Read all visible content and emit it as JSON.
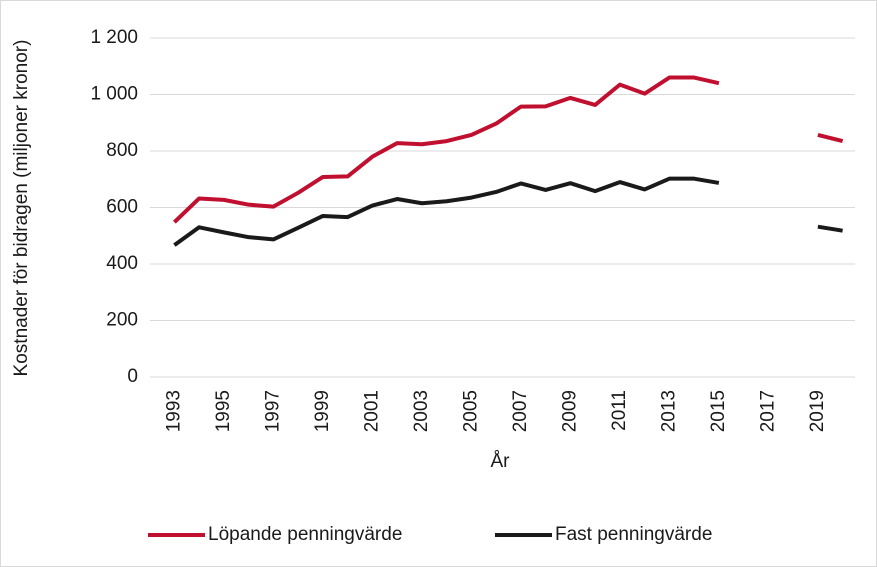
{
  "chart_data": {
    "type": "line",
    "y_label": "Kostnader för bidragen (miljoner kronor)",
    "x_label": "År",
    "categories": [
      1993,
      null,
      1995,
      null,
      1997,
      null,
      1999,
      null,
      2001,
      null,
      2003,
      null,
      2005,
      null,
      2007,
      null,
      2009,
      null,
      2011,
      null,
      2013,
      null,
      2015,
      null,
      2017,
      null,
      2019,
      null
    ],
    "series": [
      {
        "name": "Löpande penningvärde",
        "color": "#c00f2f",
        "values": [
          548,
          632,
          627,
          610,
          603,
          652,
          708,
          710,
          780,
          828,
          824,
          835,
          857,
          897,
          957,
          958,
          988,
          963,
          1035,
          1003,
          1060,
          1060,
          1040,
          null,
          null,
          null,
          857,
          835
        ]
      },
      {
        "name": "Fast penningvärde",
        "color": "#1a1a1a",
        "values": [
          467,
          530,
          512,
          495,
          487,
          528,
          570,
          566,
          607,
          630,
          615,
          622,
          635,
          655,
          685,
          662,
          686,
          658,
          690,
          664,
          702,
          702,
          687,
          null,
          null,
          null,
          532,
          518
        ]
      }
    ],
    "ylim": [
      0,
      1200
    ],
    "yticks": [
      0,
      200,
      400,
      600,
      800,
      {
        "value": 1000,
        "label": "1 000"
      },
      {
        "value": 1200,
        "label": "1 200"
      }
    ],
    "grid": true,
    "legend": "bottom"
  }
}
